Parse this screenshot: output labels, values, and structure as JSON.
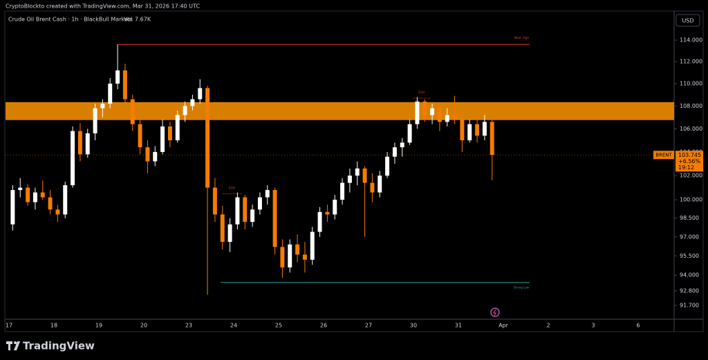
{
  "header": {
    "text": "CryptoBlockto created with TradingView.com, Mar 31, 2026 17:40 UTC"
  },
  "footer": {
    "logo": "TradingView"
  },
  "chart_data": {
    "type": "candlestick",
    "title": "Crude Oil Brent Cash · 1h · BlackBull Markets",
    "volume_label": "Vol",
    "volume": "7.67K",
    "currency": "USD",
    "symbol": "BRENT",
    "last_price": 103.745,
    "change": {
      "value": 6.56,
      "label": "+6.56%"
    },
    "countdown": "19:12",
    "log_scale": true,
    "up_color": "#ffffff",
    "down_color": "#f57c00",
    "ylim": [
      90.66,
      116.75
    ],
    "yticks": [
      {
        "value": 114,
        "label": "114.000"
      },
      {
        "value": 112,
        "label": "112.000"
      },
      {
        "value": 110,
        "label": "110.000"
      },
      {
        "value": 108,
        "label": "108.000"
      },
      {
        "value": 106,
        "label": "106.000"
      },
      {
        "value": 104,
        "label": "104.000"
      },
      {
        "value": 102,
        "label": "102.000"
      },
      {
        "value": 100,
        "label": "100.000"
      },
      {
        "value": 98.5,
        "label": "98.500"
      },
      {
        "value": 97,
        "label": "97.000"
      },
      {
        "value": 95.5,
        "label": "95.500"
      },
      {
        "value": 94,
        "label": "94.000"
      },
      {
        "value": 92.8,
        "label": "92.800"
      },
      {
        "value": 91.7,
        "label": "91.700"
      }
    ],
    "xticks": [
      "17",
      "18",
      "19",
      "20",
      "23",
      "24",
      "25",
      "26",
      "27",
      "30",
      "31",
      "Apr",
      "2",
      "3",
      "6"
    ],
    "open": [
      98.0,
      100.8,
      101.0,
      99.8,
      100.6,
      100.2,
      99.2,
      98.8,
      101.2,
      105.8,
      103.8,
      105.6,
      107.8,
      108.2,
      110.0,
      111.2,
      108.6,
      106.4,
      104.4,
      103.2,
      104.0,
      106.2,
      105.0,
      107.2,
      108.0,
      108.6,
      109.6,
      101.0,
      98.8,
      96.6,
      98.0,
      100.2,
      98.2,
      99.2,
      100.2,
      100.8,
      96.2,
      94.6,
      96.4,
      95.6,
      95.2,
      97.4,
      99.0,
      98.8,
      100.0,
      101.4,
      102.0,
      102.6,
      101.4,
      100.6,
      102.0,
      103.6,
      104.4,
      104.8,
      106.4,
      108.4,
      107.2,
      107.8,
      106.6,
      107.2,
      106.8,
      105.0,
      106.4,
      105.4,
      106.6
    ],
    "high": [
      101.2,
      101.8,
      101.3,
      101.0,
      101.6,
      100.8,
      99.6,
      101.5,
      106.2,
      106.5,
      106.0,
      108.2,
      108.6,
      110.5,
      113.6,
      111.8,
      109.0,
      107.0,
      105.0,
      104.5,
      106.8,
      106.6,
      107.6,
      108.4,
      109.0,
      110.4,
      109.8,
      101.8,
      99.5,
      98.5,
      100.6,
      100.4,
      99.6,
      100.6,
      101.2,
      101.0,
      96.8,
      96.8,
      97.2,
      96.6,
      97.8,
      99.4,
      99.6,
      100.4,
      101.8,
      102.6,
      103.2,
      102.8,
      102.2,
      102.4,
      104.0,
      104.8,
      105.2,
      106.8,
      108.8,
      108.6,
      108.2,
      108.0,
      107.8,
      108.9,
      107.2,
      106.8,
      106.8,
      107.2,
      106.8
    ],
    "low": [
      97.5,
      100.2,
      99.5,
      99.2,
      100.0,
      98.8,
      98.2,
      98.5,
      101.0,
      103.2,
      103.5,
      105.0,
      107.0,
      107.8,
      109.5,
      108.0,
      105.8,
      103.8,
      102.2,
      102.8,
      103.8,
      104.4,
      104.8,
      106.6,
      107.6,
      108.2,
      92.5,
      98.2,
      96.0,
      95.8,
      97.6,
      97.6,
      97.8,
      98.8,
      99.6,
      95.6,
      93.8,
      94.2,
      95.0,
      94.2,
      94.8,
      97.0,
      98.2,
      98.4,
      99.6,
      100.6,
      101.2,
      97.0,
      99.8,
      100.2,
      101.8,
      103.0,
      103.6,
      104.6,
      106.0,
      106.6,
      106.4,
      105.8,
      106.2,
      106.4,
      104.0,
      104.8,
      104.8,
      105.0,
      101.6
    ],
    "close": [
      100.8,
      101.0,
      99.8,
      100.6,
      100.2,
      99.2,
      98.8,
      101.2,
      105.8,
      103.8,
      105.6,
      107.8,
      108.2,
      110.0,
      111.2,
      108.6,
      106.4,
      104.4,
      103.2,
      104.0,
      106.2,
      105.0,
      107.2,
      108.0,
      108.6,
      109.6,
      101.0,
      98.8,
      96.6,
      98.0,
      100.2,
      98.2,
      99.2,
      100.2,
      100.8,
      96.2,
      94.6,
      96.4,
      95.6,
      95.2,
      97.4,
      99.0,
      98.8,
      100.0,
      101.4,
      102.0,
      102.6,
      101.4,
      100.6,
      102.0,
      103.6,
      104.4,
      104.8,
      106.4,
      108.4,
      107.2,
      107.8,
      106.6,
      107.2,
      106.8,
      105.0,
      106.4,
      105.4,
      106.6,
      103.745
    ],
    "zone": {
      "low": 106.76,
      "high": 108.34,
      "color": "#d97f00"
    },
    "levels": [
      {
        "label": "Weak High",
        "value": 113.6,
        "color": "#e53935"
      },
      {
        "label": "Strong Low",
        "value": 93.44,
        "color": "#26a69a"
      }
    ],
    "eqh": [
      {
        "label": "EQH",
        "value": 100.5
      },
      {
        "label": "EQH",
        "value": 108.7
      }
    ]
  }
}
